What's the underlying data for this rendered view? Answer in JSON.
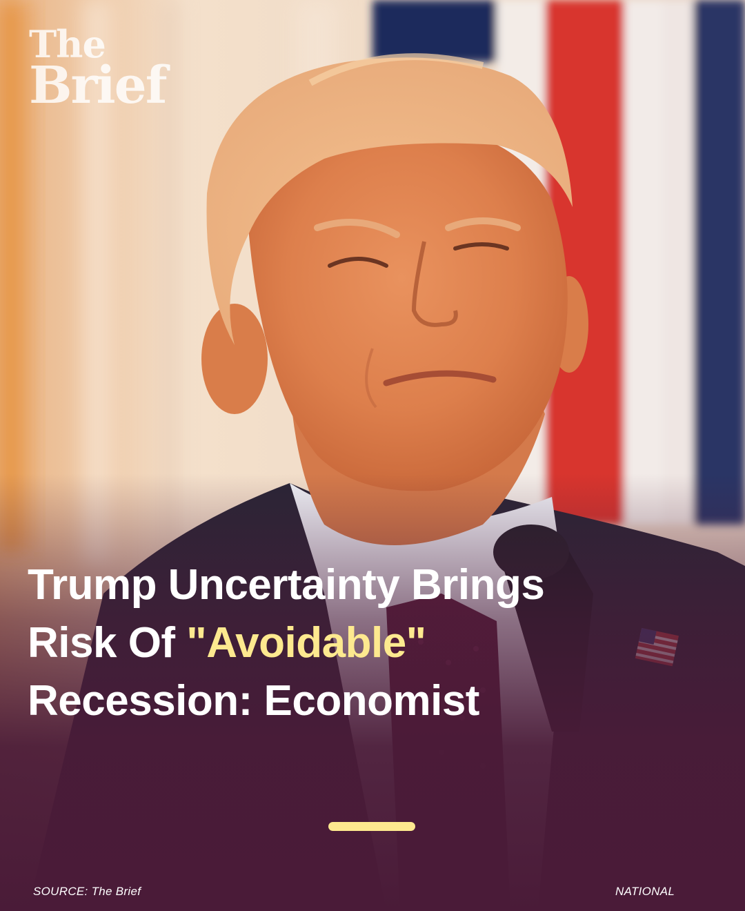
{
  "brand": {
    "logo_line1": "The",
    "logo_line2": "Brief"
  },
  "headline": {
    "part1": "Trump Uncertainty Brings",
    "part2_prefix": "Risk Of ",
    "highlight": "\"Avoidable\"",
    "part3": "Recession: Economist"
  },
  "footer": {
    "source": "SOURCE: The Brief",
    "category": "NATIONAL"
  },
  "colors": {
    "accent": "#fde98f",
    "overlay": "#4a1b38",
    "flag_red": "#d8342f",
    "flag_navy": "#1f2c5c"
  },
  "icons": {
    "photo": "portrait-photo",
    "pin": "flag-pin-icon"
  }
}
